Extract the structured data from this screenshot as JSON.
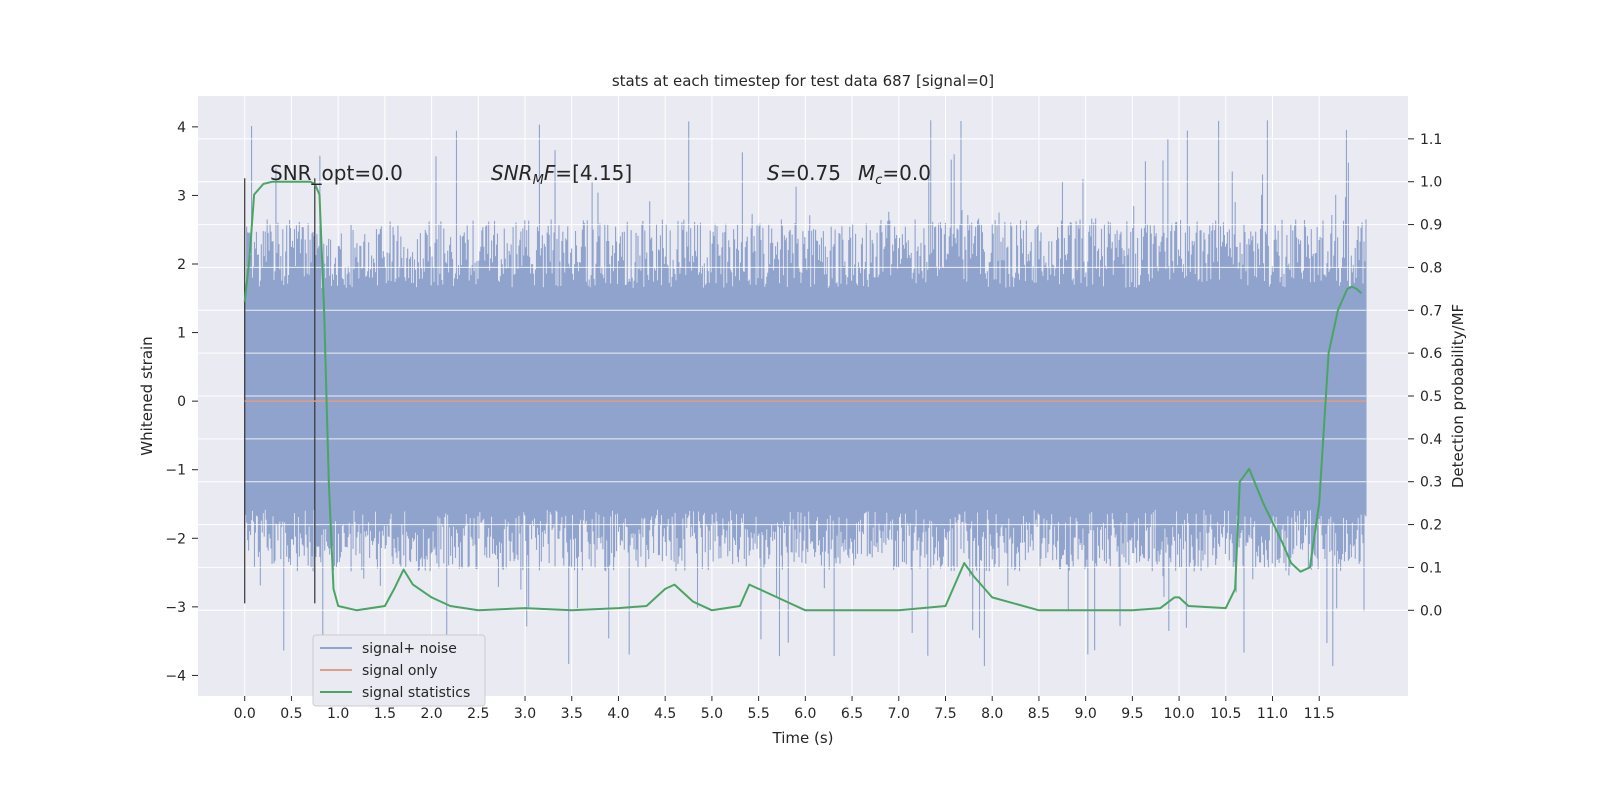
{
  "chart_data": {
    "type": "line",
    "title": "stats at each timestep for test data 687 [signal=0]",
    "xlabel": "Time (s)",
    "ylabel_left": "Whitened strain",
    "ylabel_right": "Detection probability/MF",
    "xlim": [
      -0.5,
      12.45
    ],
    "ylim_left": [
      -4.3,
      4.45
    ],
    "ylim_right": [
      -0.2,
      1.2
    ],
    "x_ticks": [
      "0.0",
      "0.5",
      "1.0",
      "1.5",
      "2.0",
      "2.5",
      "3.0",
      "3.5",
      "4.0",
      "4.5",
      "5.0",
      "5.5",
      "6.0",
      "6.5",
      "7.0",
      "7.5",
      "8.0",
      "8.5",
      "9.0",
      "9.5",
      "10.0",
      "10.5",
      "11.0",
      "11.5"
    ],
    "y_ticks_left": [
      "4",
      "3",
      "2",
      "1",
      "0",
      "−1",
      "−2",
      "−3",
      "−4"
    ],
    "y_ticks_right": [
      "1.1",
      "1.0",
      "0.9",
      "0.8",
      "0.7",
      "0.6",
      "0.5",
      "0.4",
      "0.3",
      "0.2",
      "0.1",
      "0.0"
    ],
    "grid": true,
    "legend_placement": "lower-left",
    "annotations": {
      "snr_opt": "SNR_opt=0.0",
      "snr_mf": "[4.15]",
      "s_value": "=0.75",
      "mc_value": "=0.0"
    },
    "vertical_markers": [
      0.0,
      0.75
    ],
    "series": [
      {
        "name": "signal+ noise",
        "axis": "left",
        "color": "#8fa3cc",
        "description_stats": {
          "x_range": [
            0.0,
            12.0
          ],
          "typical_band": [
            -1.9,
            2.0
          ],
          "max_spike": 4.1,
          "min_spike": -3.9
        }
      },
      {
        "name": "signal only",
        "axis": "left",
        "color": "#e09d80",
        "x": [
          0.0,
          12.0
        ],
        "y": [
          0.0,
          0.0
        ]
      },
      {
        "name": "signal statistics",
        "axis": "right",
        "color": "#4aa564",
        "x": [
          0.0,
          0.05,
          0.1,
          0.2,
          0.3,
          0.5,
          0.7,
          0.75,
          0.8,
          0.85,
          0.9,
          0.95,
          1.0,
          1.2,
          1.5,
          1.6,
          1.7,
          1.8,
          2.0,
          2.2,
          2.5,
          3.0,
          3.5,
          4.0,
          4.3,
          4.5,
          4.6,
          4.8,
          5.0,
          5.3,
          5.4,
          5.6,
          6.0,
          6.5,
          7.0,
          7.5,
          7.6,
          7.7,
          7.8,
          8.0,
          8.5,
          9.0,
          9.5,
          9.8,
          9.95,
          10.0,
          10.1,
          10.5,
          10.6,
          10.65,
          10.75,
          10.9,
          11.1,
          11.2,
          11.3,
          11.4,
          11.5,
          11.6,
          11.7,
          11.8,
          11.85,
          11.9,
          11.95
        ],
        "y": [
          0.72,
          0.82,
          0.97,
          0.995,
          1.0,
          1.0,
          1.0,
          0.995,
          0.97,
          0.7,
          0.3,
          0.05,
          0.01,
          0.0,
          0.01,
          0.05,
          0.095,
          0.06,
          0.03,
          0.01,
          0.0,
          0.005,
          0.0,
          0.005,
          0.01,
          0.05,
          0.06,
          0.02,
          0.0,
          0.01,
          0.06,
          0.04,
          0.0,
          0.0,
          0.0,
          0.01,
          0.06,
          0.11,
          0.08,
          0.03,
          0.0,
          0.0,
          0.0,
          0.005,
          0.03,
          0.03,
          0.01,
          0.005,
          0.05,
          0.3,
          0.33,
          0.25,
          0.16,
          0.11,
          0.09,
          0.1,
          0.25,
          0.6,
          0.7,
          0.75,
          0.755,
          0.75,
          0.74
        ]
      }
    ]
  }
}
